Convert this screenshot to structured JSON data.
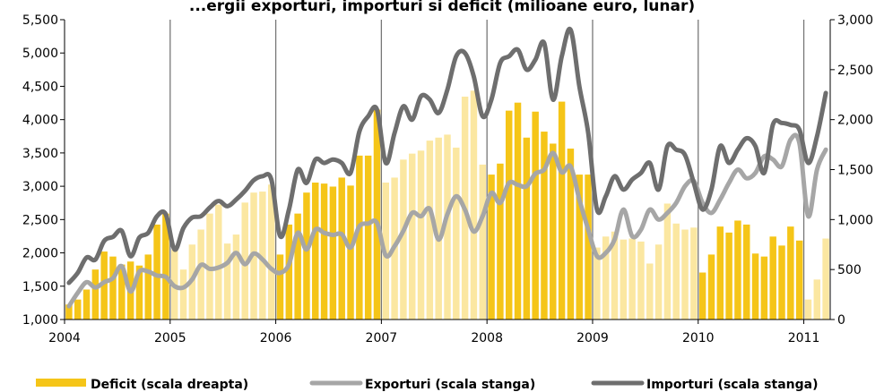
{
  "chart_data": {
    "type": "bar+line",
    "title": "...ergii exporturi, importuri si deficit (milioane euro, lunar)",
    "x_tick_labels": [
      "2004",
      "2005",
      "2006",
      "2007",
      "2008",
      "2009",
      "2010",
      "2011"
    ],
    "left_axis": {
      "ylim": [
        1000,
        5500
      ],
      "ticks": [
        "1,000",
        "1,500",
        "2,000",
        "2,500",
        "3,000",
        "3,500",
        "4,000",
        "4,500",
        "5,000",
        "5,500"
      ]
    },
    "right_axis": {
      "ylim": [
        0,
        3000
      ],
      "ticks": [
        "0",
        "500",
        "1,000",
        "1,500",
        "2,000",
        "2,500",
        "3,000"
      ]
    },
    "colors": {
      "deficit_strong": "#F5C518",
      "deficit_light": "#FBE7A1",
      "exports": "#A6A6A6",
      "imports": "#6E6E6E"
    },
    "legend": {
      "deficit": "Deficit (scala dreapta)",
      "exports": "Exporturi (scala stanga)",
      "imports": "Importuri (scala stanga)"
    },
    "series": [
      {
        "name": "Deficit (scala dreapta)",
        "axis": "right",
        "values": [
          150,
          200,
          300,
          500,
          680,
          630,
          550,
          580,
          540,
          650,
          950,
          1060,
          700,
          500,
          750,
          900,
          1060,
          1150,
          760,
          850,
          1170,
          1270,
          1280,
          1350,
          650,
          950,
          1060,
          1270,
          1370,
          1360,
          1330,
          1420,
          1340,
          1640,
          1640,
          2100,
          1370,
          1420,
          1600,
          1660,
          1690,
          1790,
          1820,
          1850,
          1720,
          2230,
          2290,
          1550,
          1450,
          1560,
          2090,
          2170,
          1820,
          2080,
          1880,
          1760,
          2180,
          1710,
          1450,
          1450,
          720,
          830,
          880,
          800,
          810,
          780,
          560,
          750,
          1160,
          960,
          900,
          920,
          470,
          650,
          930,
          870,
          990,
          950,
          660,
          630,
          830,
          740,
          930,
          790,
          200,
          400,
          810
        ]
      },
      {
        "name": "Exporturi (scala stanga)",
        "axis": "left",
        "values": [
          1200,
          1400,
          1560,
          1480,
          1560,
          1620,
          1800,
          1420,
          1720,
          1720,
          1660,
          1640,
          1500,
          1480,
          1600,
          1820,
          1760,
          1780,
          1850,
          2000,
          1830,
          1990,
          1900,
          1760,
          1700,
          1830,
          2300,
          2050,
          2350,
          2300,
          2270,
          2280,
          2080,
          2400,
          2440,
          2450,
          1960,
          2100,
          2330,
          2600,
          2550,
          2660,
          2200,
          2580,
          2850,
          2650,
          2320,
          2550,
          2900,
          2750,
          3050,
          3020,
          3000,
          3190,
          3250,
          3500,
          3210,
          3300,
          2800,
          2350,
          1950,
          2000,
          2200,
          2650,
          2250,
          2350,
          2650,
          2500,
          2600,
          2750,
          3000,
          3080,
          2750,
          2600,
          2800,
          3050,
          3250,
          3120,
          3200,
          3450,
          3400,
          3300,
          3700,
          3650,
          2550,
          3250,
          3550
        ]
      },
      {
        "name": "Importuri (scala stanga)",
        "axis": "left",
        "values": [
          1550,
          1700,
          1930,
          1900,
          2180,
          2240,
          2330,
          1950,
          2230,
          2300,
          2550,
          2580,
          2050,
          2370,
          2530,
          2550,
          2680,
          2780,
          2700,
          2800,
          2930,
          3090,
          3150,
          3100,
          2250,
          2650,
          3250,
          3050,
          3400,
          3350,
          3400,
          3350,
          3200,
          3820,
          4050,
          4150,
          3350,
          3800,
          4200,
          4000,
          4350,
          4300,
          4100,
          4450,
          4950,
          5000,
          4650,
          4050,
          4300,
          4850,
          4950,
          5050,
          4750,
          4900,
          5150,
          4300,
          4950,
          5350,
          4500,
          3800,
          2650,
          2850,
          3150,
          2950,
          3100,
          3200,
          3350,
          2950,
          3600,
          3550,
          3470,
          3050,
          2650,
          2950,
          3600,
          3350,
          3550,
          3720,
          3600,
          3200,
          3930,
          3950,
          3920,
          3850,
          3350,
          3750,
          4400
        ]
      }
    ],
    "grid": "vertical lines at year boundaries"
  }
}
